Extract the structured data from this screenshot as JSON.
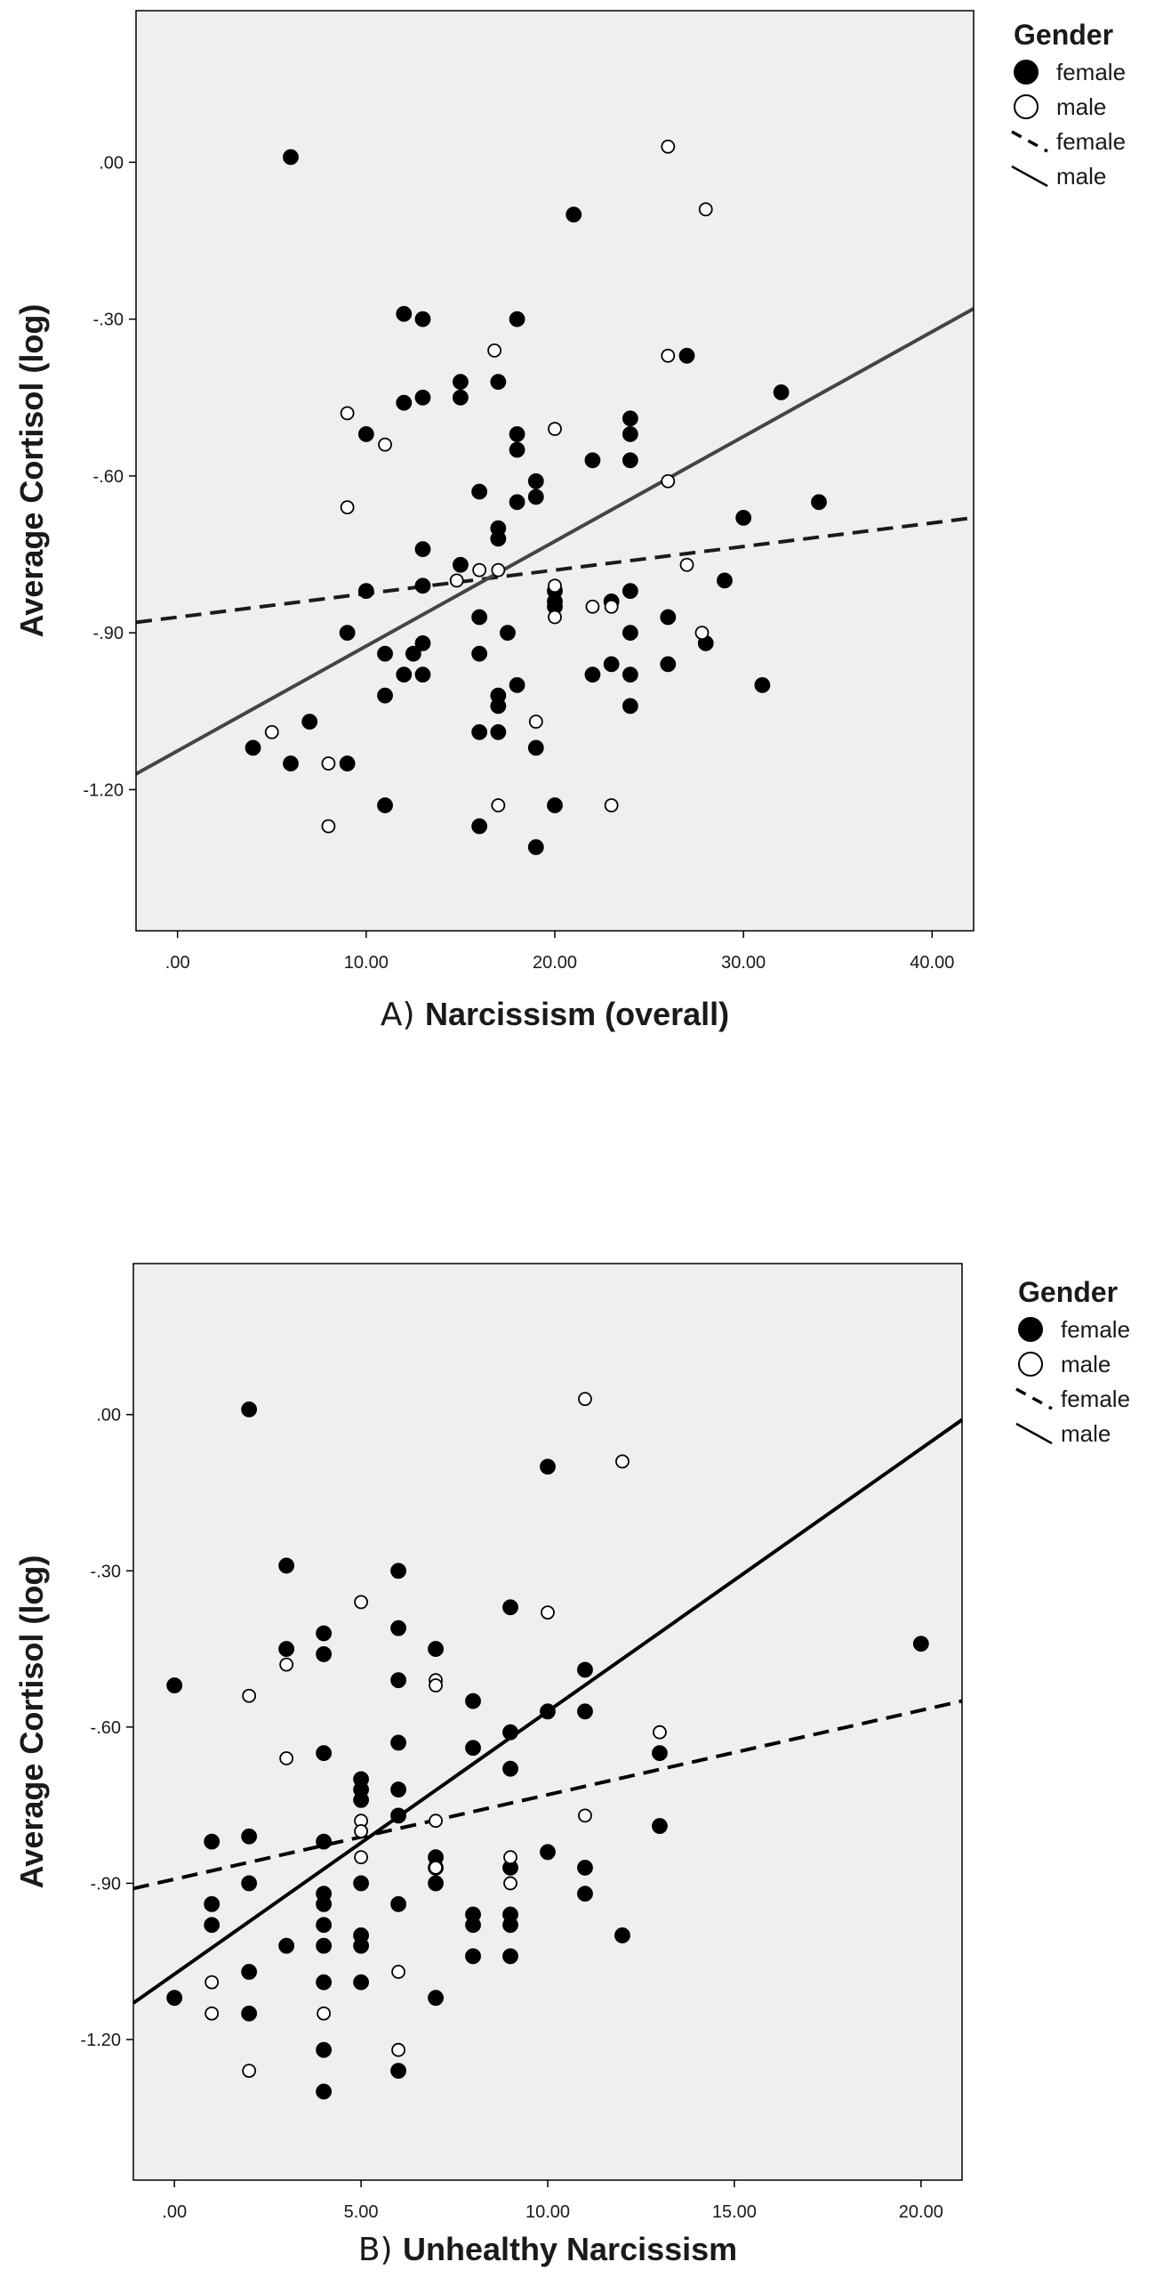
{
  "chart_data": [
    {
      "type": "scatter",
      "panel": "A",
      "title_prefix": "A)",
      "xlabel": "Narcissism (overall)",
      "ylabel": "Average Cortisol (log)",
      "xlim": [
        -2.2,
        42.2
      ],
      "ylim": [
        -1.47,
        0.29
      ],
      "xticks": [
        0,
        10,
        20,
        30,
        40
      ],
      "xtick_labels": [
        ".00",
        "10.00",
        "20.00",
        "30.00",
        "40.00"
      ],
      "yticks": [
        0,
        -0.3,
        -0.6,
        -0.9,
        -1.2
      ],
      "ytick_labels": [
        ".00",
        "-.30",
        "-.60",
        "-.90",
        "-1.20"
      ],
      "background_color": "#efefef",
      "legend": {
        "title": "Gender",
        "position": "right",
        "entries": [
          {
            "label": "female",
            "kind": "marker-filled"
          },
          {
            "label": "male",
            "kind": "marker-open"
          },
          {
            "label": "female",
            "kind": "line-dashed"
          },
          {
            "label": "male",
            "kind": "line-solid"
          }
        ]
      },
      "series": [
        {
          "name": "female",
          "marker": "filled",
          "color": "#000000",
          "points": [
            [
              6,
              0.01
            ],
            [
              21,
              -0.1
            ],
            [
              12,
              -0.29
            ],
            [
              13,
              -0.3
            ],
            [
              18,
              -0.3
            ],
            [
              27,
              -0.37
            ],
            [
              15,
              -0.42
            ],
            [
              17,
              -0.42
            ],
            [
              12,
              -0.46
            ],
            [
              13,
              -0.45
            ],
            [
              15,
              -0.45
            ],
            [
              32,
              -0.44
            ],
            [
              24,
              -0.49
            ],
            [
              24,
              -0.52
            ],
            [
              10,
              -0.52
            ],
            [
              18,
              -0.52
            ],
            [
              18,
              -0.55
            ],
            [
              22,
              -0.57
            ],
            [
              24,
              -0.57
            ],
            [
              19,
              -0.61
            ],
            [
              16,
              -0.63
            ],
            [
              19,
              -0.64
            ],
            [
              18,
              -0.65
            ],
            [
              34,
              -0.65
            ],
            [
              30,
              -0.68
            ],
            [
              17,
              -0.7
            ],
            [
              17,
              -0.72
            ],
            [
              13,
              -0.74
            ],
            [
              15,
              -0.77
            ],
            [
              29,
              -0.8
            ],
            [
              13,
              -0.81
            ],
            [
              10,
              -0.82
            ],
            [
              20,
              -0.82
            ],
            [
              24,
              -0.82
            ],
            [
              20,
              -0.84
            ],
            [
              23,
              -0.84
            ],
            [
              20,
              -0.85
            ],
            [
              16,
              -0.87
            ],
            [
              26,
              -0.87
            ],
            [
              9,
              -0.9
            ],
            [
              17.5,
              -0.9
            ],
            [
              24,
              -0.9
            ],
            [
              13,
              -0.92
            ],
            [
              28,
              -0.92
            ],
            [
              11,
              -0.94
            ],
            [
              12.5,
              -0.94
            ],
            [
              16,
              -0.94
            ],
            [
              23,
              -0.96
            ],
            [
              26,
              -0.96
            ],
            [
              12,
              -0.98
            ],
            [
              13,
              -0.98
            ],
            [
              22,
              -0.98
            ],
            [
              24,
              -0.98
            ],
            [
              18,
              -1.0
            ],
            [
              31,
              -1.0
            ],
            [
              11,
              -1.02
            ],
            [
              17,
              -1.02
            ],
            [
              17,
              -1.04
            ],
            [
              24,
              -1.04
            ],
            [
              7,
              -1.07
            ],
            [
              16,
              -1.09
            ],
            [
              17,
              -1.09
            ],
            [
              4,
              -1.12
            ],
            [
              19,
              -1.12
            ],
            [
              6,
              -1.15
            ],
            [
              9,
              -1.15
            ],
            [
              11,
              -1.23
            ],
            [
              20,
              -1.23
            ],
            [
              16,
              -1.27
            ],
            [
              19,
              -1.31
            ]
          ]
        },
        {
          "name": "male",
          "marker": "open",
          "color": "#000000",
          "points": [
            [
              26,
              0.03
            ],
            [
              28,
              -0.09
            ],
            [
              16.8,
              -0.36
            ],
            [
              26,
              -0.37
            ],
            [
              9,
              -0.48
            ],
            [
              20,
              -0.51
            ],
            [
              11,
              -0.54
            ],
            [
              26,
              -0.61
            ],
            [
              9,
              -0.66
            ],
            [
              27,
              -0.77
            ],
            [
              16,
              -0.78
            ],
            [
              17,
              -0.78
            ],
            [
              14.8,
              -0.8
            ],
            [
              20,
              -0.81
            ],
            [
              22,
              -0.85
            ],
            [
              23,
              -0.85
            ],
            [
              20,
              -0.87
            ],
            [
              27.8,
              -0.9
            ],
            [
              19,
              -1.07
            ],
            [
              5,
              -1.09
            ],
            [
              8,
              -1.15
            ],
            [
              17,
              -1.23
            ],
            [
              23,
              -1.23
            ],
            [
              8,
              -1.27
            ]
          ]
        }
      ],
      "fit_lines": [
        {
          "name": "female",
          "style": "dashed",
          "color": "#1a1a1a",
          "x": [
            -2.2,
            42.2
          ],
          "y": [
            -0.88,
            -0.68
          ]
        },
        {
          "name": "male",
          "style": "solid",
          "color": "#444444",
          "x": [
            -2.2,
            42.2
          ],
          "y": [
            -1.17,
            -0.28
          ]
        }
      ]
    },
    {
      "type": "scatter",
      "panel": "B",
      "title_prefix": "B)",
      "xlabel": "Unhealthy Narcissism",
      "ylabel": "Average Cortisol (log)",
      "xlim": [
        -1.1,
        21.1
      ],
      "ylim": [
        -1.47,
        0.29
      ],
      "xticks": [
        0,
        5,
        10,
        15,
        20
      ],
      "xtick_labels": [
        ".00",
        "5.00",
        "10.00",
        "15.00",
        "20.00"
      ],
      "yticks": [
        0,
        -0.3,
        -0.6,
        -0.9,
        -1.2
      ],
      "ytick_labels": [
        ".00",
        "-.30",
        "-.60",
        "-.90",
        "-1.20"
      ],
      "background_color": "#efefef",
      "legend": {
        "title": "Gender",
        "position": "right",
        "entries": [
          {
            "label": "female",
            "kind": "marker-filled"
          },
          {
            "label": "male",
            "kind": "marker-open"
          },
          {
            "label": "female",
            "kind": "line-dashed"
          },
          {
            "label": "male",
            "kind": "line-solid"
          }
        ]
      },
      "series": [
        {
          "name": "female",
          "marker": "filled",
          "color": "#000000",
          "points": [
            [
              2,
              0.01
            ],
            [
              10,
              -0.1
            ],
            [
              3,
              -0.29
            ],
            [
              6,
              -0.3
            ],
            [
              9,
              -0.37
            ],
            [
              4,
              -0.42
            ],
            [
              6,
              -0.41
            ],
            [
              20,
              -0.44
            ],
            [
              3,
              -0.45
            ],
            [
              4,
              -0.46
            ],
            [
              7,
              -0.45
            ],
            [
              11,
              -0.49
            ],
            [
              0,
              -0.52
            ],
            [
              6,
              -0.51
            ],
            [
              8,
              -0.55
            ],
            [
              10,
              -0.57
            ],
            [
              11,
              -0.57
            ],
            [
              9,
              -0.61
            ],
            [
              6,
              -0.63
            ],
            [
              4,
              -0.65
            ],
            [
              8,
              -0.64
            ],
            [
              13,
              -0.65
            ],
            [
              9,
              -0.68
            ],
            [
              5,
              -0.7
            ],
            [
              5,
              -0.72
            ],
            [
              6,
              -0.72
            ],
            [
              5,
              -0.74
            ],
            [
              6,
              -0.77
            ],
            [
              13,
              -0.79
            ],
            [
              2,
              -0.81
            ],
            [
              1,
              -0.82
            ],
            [
              4,
              -0.82
            ],
            [
              10,
              -0.84
            ],
            [
              7,
              -0.85
            ],
            [
              7,
              -0.87
            ],
            [
              9,
              -0.87
            ],
            [
              11,
              -0.87
            ],
            [
              2,
              -0.9
            ],
            [
              5,
              -0.9
            ],
            [
              7,
              -0.9
            ],
            [
              4,
              -0.92
            ],
            [
              11,
              -0.92
            ],
            [
              1,
              -0.94
            ],
            [
              4,
              -0.94
            ],
            [
              6,
              -0.94
            ],
            [
              8,
              -0.96
            ],
            [
              9,
              -0.96
            ],
            [
              1,
              -0.98
            ],
            [
              4,
              -0.98
            ],
            [
              8,
              -0.98
            ],
            [
              9,
              -0.98
            ],
            [
              5,
              -1.0
            ],
            [
              12,
              -1.0
            ],
            [
              3,
              -1.02
            ],
            [
              4,
              -1.02
            ],
            [
              5,
              -1.02
            ],
            [
              8,
              -1.04
            ],
            [
              9,
              -1.04
            ],
            [
              2,
              -1.07
            ],
            [
              4,
              -1.09
            ],
            [
              5,
              -1.09
            ],
            [
              0,
              -1.12
            ],
            [
              7,
              -1.12
            ],
            [
              2,
              -1.15
            ],
            [
              4,
              -1.22
            ],
            [
              6,
              -1.26
            ],
            [
              4,
              -1.3
            ]
          ]
        },
        {
          "name": "male",
          "marker": "open",
          "color": "#000000",
          "points": [
            [
              11,
              0.03
            ],
            [
              12,
              -0.09
            ],
            [
              5,
              -0.36
            ],
            [
              10,
              -0.38
            ],
            [
              3,
              -0.48
            ],
            [
              7,
              -0.51
            ],
            [
              7,
              -0.52
            ],
            [
              2,
              -0.54
            ],
            [
              13,
              -0.61
            ],
            [
              3,
              -0.66
            ],
            [
              11,
              -0.77
            ],
            [
              5,
              -0.78
            ],
            [
              7,
              -0.78
            ],
            [
              5,
              -0.8
            ],
            [
              9,
              -0.85
            ],
            [
              5,
              -0.85
            ],
            [
              7,
              -0.87
            ],
            [
              9,
              -0.9
            ],
            [
              6,
              -1.07
            ],
            [
              1,
              -1.09
            ],
            [
              1,
              -1.15
            ],
            [
              4,
              -1.15
            ],
            [
              6,
              -1.22
            ],
            [
              2,
              -1.26
            ]
          ]
        }
      ],
      "fit_lines": [
        {
          "name": "female",
          "style": "dashed",
          "color": "#000000",
          "x": [
            -1.1,
            21.1
          ],
          "y": [
            -0.91,
            -0.55
          ]
        },
        {
          "name": "male",
          "style": "solid",
          "color": "#000000",
          "x": [
            -1.1,
            21.1
          ],
          "y": [
            -1.13,
            -0.01
          ]
        }
      ]
    }
  ]
}
